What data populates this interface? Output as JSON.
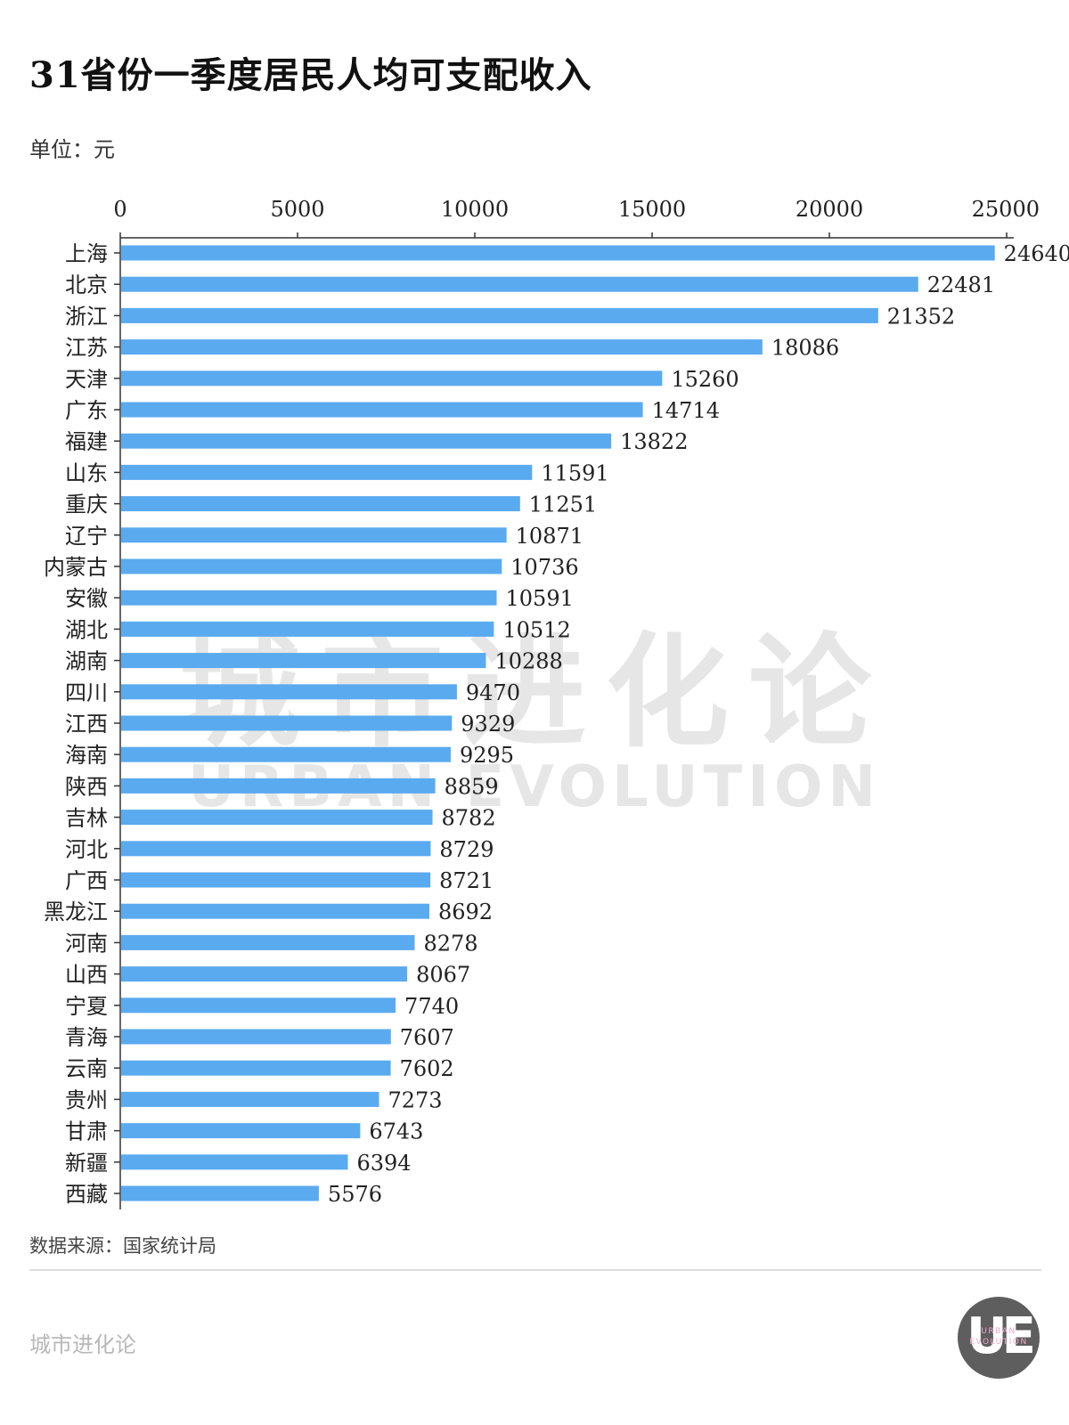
{
  "title": "31省份一季度居民人均可支配收入",
  "unit": "单位：元",
  "source": "数据来源：国家统计局",
  "brand": "城市进化论",
  "watermark": {
    "cn": "城市进化论",
    "en": "URBAN EVOLUTION"
  },
  "logo": {
    "letters": "UE",
    "line1": "URBAN",
    "line2": "EVOLUTION"
  },
  "colors": {
    "bar": "#5aaaf0",
    "axis": "#333333",
    "text": "#222222",
    "watermark": "#e6e6e6"
  },
  "chart_data": {
    "type": "bar",
    "orientation": "horizontal",
    "xlim": [
      0,
      25000
    ],
    "xticks": [
      0,
      5000,
      10000,
      15000,
      20000,
      25000
    ],
    "categories": [
      "上海",
      "北京",
      "浙江",
      "江苏",
      "天津",
      "广东",
      "福建",
      "山东",
      "重庆",
      "辽宁",
      "内蒙古",
      "安徽",
      "湖北",
      "湖南",
      "四川",
      "江西",
      "海南",
      "陕西",
      "吉林",
      "河北",
      "广西",
      "黑龙江",
      "河南",
      "山西",
      "宁夏",
      "青海",
      "云南",
      "贵州",
      "甘肃",
      "新疆",
      "西藏"
    ],
    "values": [
      24640,
      22481,
      21352,
      18086,
      15260,
      14714,
      13822,
      11591,
      11251,
      10871,
      10736,
      10591,
      10512,
      10288,
      9470,
      9329,
      9295,
      8859,
      8782,
      8729,
      8721,
      8692,
      8278,
      8067,
      7740,
      7607,
      7602,
      7273,
      6743,
      6394,
      5576
    ],
    "data_labels": true,
    "grid": false,
    "legend": "none"
  }
}
